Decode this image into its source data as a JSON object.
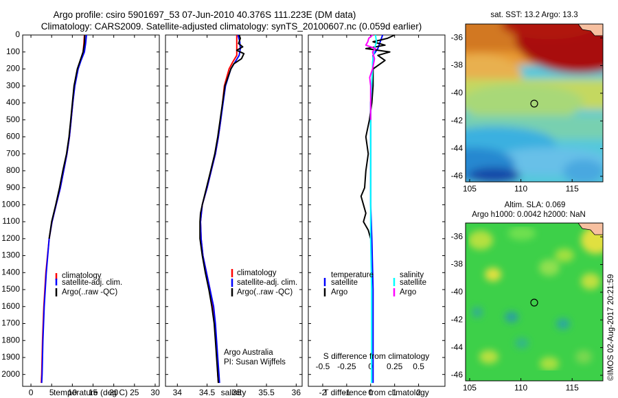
{
  "header": {
    "line1": "Argo profile: csiro 5901697_53 07-Jun-2010 40.376S 111.223E (DM data)",
    "line2": "Climatology: CARS2009. Satellite-adjusted climatology: synTS_20100607.nc (0.059d earlier)"
  },
  "colors": {
    "climatology": "#ff0000",
    "satellite": "#0000ff",
    "argo": "#000000",
    "salinity_satellite": "#00ffff",
    "salinity_argo": "#ff00ff"
  },
  "footer": {
    "argo_australia": "Argo Australia",
    "pi": "PI: Susan Wijffels",
    "imos": "©IMOS 02-Aug-2017 20:21:59"
  },
  "chart_data": [
    {
      "type": "line",
      "xlabel": "temperature (deg C)",
      "xlim": [
        -2,
        31
      ],
      "ylim": [
        0,
        2070
      ],
      "x_ticks": [
        0,
        5,
        10,
        15,
        20,
        25,
        30
      ],
      "y_ticks": [
        0,
        100,
        200,
        300,
        400,
        500,
        600,
        700,
        800,
        900,
        1000,
        1100,
        1200,
        1300,
        1400,
        1500,
        1600,
        1700,
        1800,
        1900,
        2000
      ],
      "legend": [
        "climatology",
        "satellite-adj. clim.",
        "Argo(..raw -QC)"
      ],
      "legend_position": "lower-center",
      "series": [
        {
          "name": "climatology",
          "color": "#ff0000",
          "depth": [
            0,
            50,
            100,
            150,
            200,
            300,
            400,
            500,
            600,
            700,
            800,
            900,
            1000,
            1100,
            1200,
            1400,
            1600,
            1800,
            2000,
            2050
          ],
          "values": [
            12.9,
            12.8,
            12.6,
            12.0,
            11.3,
            10.5,
            10.1,
            9.7,
            9.3,
            8.7,
            7.9,
            7.1,
            6.1,
            5.1,
            4.4,
            3.6,
            3.1,
            2.8,
            2.6,
            2.5
          ]
        },
        {
          "name": "satellite-adj. clim.",
          "color": "#0000ff",
          "depth": [
            0,
            50,
            100,
            150,
            200,
            300,
            400,
            500,
            600,
            700,
            800,
            900,
            1000,
            1100,
            1200,
            1400,
            1600,
            1800,
            2000,
            2050
          ],
          "values": [
            13.4,
            13.2,
            12.9,
            12.1,
            11.4,
            10.6,
            10.1,
            9.7,
            9.3,
            8.7,
            7.9,
            7.1,
            6.1,
            5.1,
            4.4,
            3.7,
            3.2,
            2.9,
            2.7,
            2.6
          ]
        },
        {
          "name": "Argo(..raw -QC)",
          "color": "#000000",
          "depth": [
            0,
            50,
            100,
            150,
            200,
            300,
            400,
            500,
            600,
            700,
            800,
            900,
            1000,
            1100,
            1200
          ],
          "values": [
            13.0,
            12.9,
            12.6,
            11.9,
            11.2,
            10.4,
            10.0,
            9.6,
            9.2,
            8.6,
            7.7,
            6.9,
            6.0,
            5.0,
            4.4
          ]
        }
      ]
    },
    {
      "type": "line",
      "xlabel": "salinity",
      "xlim": [
        33.8,
        36.1
      ],
      "ylim": [
        0,
        2070
      ],
      "x_ticks": [
        34,
        34.5,
        35,
        35.5,
        36
      ],
      "legend": [
        "climatology",
        "satellite-adj. clim.",
        "Argo(..raw -QC)"
      ],
      "legend_position": "lower-center",
      "series": [
        {
          "name": "climatology",
          "color": "#ff0000",
          "depth": [
            0,
            40,
            80,
            120,
            160,
            200,
            300,
            400,
            500,
            600,
            700,
            800,
            900,
            1000,
            1100,
            1200,
            1300,
            1400,
            1500,
            1600,
            1700,
            1800,
            1900,
            2000,
            2050
          ],
          "values": [
            35.0,
            35.0,
            35.0,
            35.0,
            34.93,
            34.87,
            34.79,
            34.76,
            34.73,
            34.69,
            34.64,
            34.57,
            34.5,
            34.42,
            34.39,
            34.4,
            34.43,
            34.49,
            34.55,
            34.6,
            34.63,
            34.65,
            34.67,
            34.68,
            34.69
          ]
        },
        {
          "name": "satellite-adj. clim.",
          "color": "#0000ff",
          "depth": [
            0,
            40,
            80,
            120,
            160,
            200,
            300,
            400,
            500,
            600,
            700,
            800,
            900,
            1000,
            1100,
            1200,
            1300,
            1400,
            1500,
            1600,
            1700,
            1800,
            1900,
            2000,
            2050
          ],
          "values": [
            35.02,
            35.05,
            35.06,
            35.04,
            34.97,
            34.9,
            34.81,
            34.77,
            34.73,
            34.69,
            34.64,
            34.57,
            34.5,
            34.42,
            34.39,
            34.4,
            34.43,
            34.49,
            34.55,
            34.61,
            34.64,
            34.66,
            34.68,
            34.7,
            34.71
          ]
        },
        {
          "name": "Argo(..raw -QC)",
          "color": "#000000",
          "depth": [
            0,
            20,
            50,
            70,
            90,
            110,
            140,
            170,
            200,
            300,
            400,
            500,
            600,
            700,
            800,
            900,
            1000,
            1050,
            1100,
            1200,
            1300,
            1400,
            1500,
            1600,
            1700,
            1800,
            1900,
            2000,
            2050
          ],
          "values": [
            35.04,
            35.06,
            35.03,
            35.1,
            35.0,
            35.12,
            35.08,
            34.95,
            34.9,
            34.8,
            34.76,
            34.72,
            34.68,
            34.63,
            34.56,
            34.49,
            34.42,
            34.39,
            34.38,
            34.38,
            34.42,
            34.47,
            34.53,
            34.58,
            34.62,
            34.64,
            34.66,
            34.68,
            34.69
          ]
        }
      ]
    },
    {
      "type": "line",
      "xlabel": "T difference from climatology",
      "top_axis_label": "S difference from climatology",
      "xlim": [
        -2.6,
        3.1
      ],
      "ylim": [
        0,
        2070
      ],
      "x_ticks": [
        -2,
        -1,
        0,
        1,
        2
      ],
      "top_ticks": [
        "-0.5",
        "-0.25",
        "0",
        "0.25",
        "0.5"
      ],
      "legend_titles": [
        "temperature",
        "salinity"
      ],
      "legend": [
        "satellite",
        "Argo",
        "satellite",
        "Argo"
      ],
      "series": [
        {
          "name": "satellite",
          "group": "temperature",
          "color": "#0000ff",
          "depth": [
            0,
            40,
            80,
            120,
            160,
            200,
            300,
            400,
            500,
            600,
            800,
            1000,
            1200,
            1500,
            2000,
            2050
          ],
          "values": [
            0.5,
            0.4,
            0.3,
            0.1,
            0.1,
            0.1,
            0.05,
            0.0,
            0.0,
            0.0,
            0.0,
            0.0,
            0.05,
            0.1,
            0.1,
            0.1
          ]
        },
        {
          "name": "Argo",
          "group": "temperature",
          "color": "#000000",
          "depth": [
            0,
            20,
            40,
            60,
            80,
            100,
            120,
            150,
            200,
            300,
            400,
            500,
            600,
            700,
            800,
            900,
            950,
            1000,
            1050,
            1100,
            1150,
            1200
          ],
          "values": [
            1.0,
            0.7,
            0.1,
            0.6,
            -0.2,
            0.8,
            0.3,
            0.6,
            0.1,
            0.1,
            0.05,
            -0.05,
            -0.2,
            -0.1,
            -0.2,
            -0.25,
            -0.4,
            -0.3,
            -0.2,
            -0.3,
            -0.1,
            0.0
          ]
        },
        {
          "name": "satellite",
          "group": "salinity",
          "color": "#00ffff",
          "depth": [
            0,
            40,
            80,
            120,
            160,
            200,
            300,
            400,
            500,
            600,
            800,
            1000,
            1200,
            1500,
            2000,
            2050
          ],
          "values": [
            0.05,
            0.06,
            0.04,
            0.03,
            0.02,
            0.02,
            0.01,
            0.0,
            0.0,
            0.0,
            0.0,
            0.0,
            0.0,
            0.01,
            0.01,
            0.01
          ]
        },
        {
          "name": "Argo",
          "group": "salinity",
          "color": "#ff00ff",
          "depth": [
            0,
            20,
            40,
            60,
            80,
            100,
            120,
            140,
            170,
            200,
            250,
            300,
            400,
            500
          ],
          "values": [
            0.02,
            -0.02,
            -0.03,
            -0.05,
            0.05,
            0.02,
            0.03,
            0.04,
            0.03,
            0.02,
            -0.01,
            0.0,
            0.0,
            0.0
          ]
        }
      ]
    },
    {
      "type": "heatmap",
      "title": "sat. SST: 13.2 Argo: 13.3",
      "xlim": [
        104.6,
        118
      ],
      "ylim": [
        -46.4,
        -35
      ],
      "x_ticks": [
        105,
        110,
        115
      ],
      "y_ticks": [
        -36,
        -38,
        -40,
        -42,
        -44,
        -46
      ],
      "marker": {
        "lon": 111.223,
        "lat": -40.376
      }
    },
    {
      "type": "heatmap",
      "title_line1": "Altim. SLA: 0.069",
      "title_line2": "Argo h1000: 0.0042 h2000: NaN",
      "xlim": [
        104.6,
        118
      ],
      "ylim": [
        -46.4,
        -35
      ],
      "x_ticks": [
        105,
        110,
        115
      ],
      "y_ticks": [
        -36,
        -38,
        -40,
        -42,
        -44,
        -46
      ],
      "marker": {
        "lon": 111.223,
        "lat": -40.376
      }
    }
  ]
}
